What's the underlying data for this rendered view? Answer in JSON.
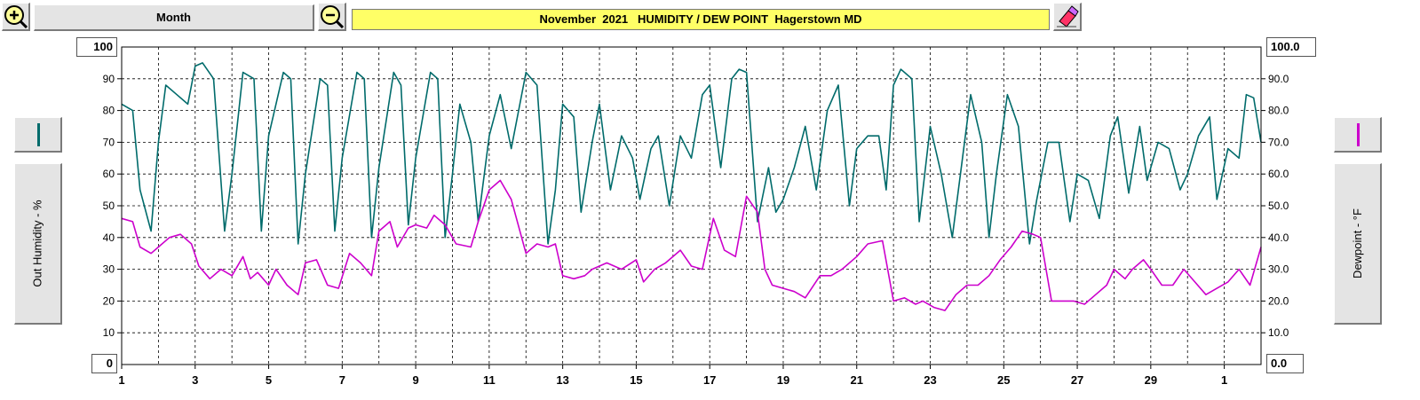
{
  "toolbar": {
    "period_label": "Month",
    "title": "November  2021   HUMIDITY / DEW POINT  Hagerstown MD",
    "zoom_in_icon": "magnifier-plus-icon",
    "zoom_out_icon": "magnifier-minus-icon",
    "eraser_icon": "eraser-icon"
  },
  "left_axis": {
    "label": "Out Humidity - %",
    "max_box": "100",
    "min_box": "0",
    "ticks": [
      "100",
      "90",
      "80",
      "70",
      "60",
      "50",
      "40",
      "30",
      "20",
      "10",
      "0"
    ],
    "series_color": "#006b6b"
  },
  "right_axis": {
    "label": "Dewpoint - °F",
    "max_box": "100.0",
    "min_box": "0.0",
    "ticks": [
      "100.0",
      "90.0",
      "80.0",
      "70.0",
      "60.0",
      "50.0",
      "40.0",
      "30.0",
      "20.0",
      "10.0",
      "0.0"
    ],
    "series_color": "#cc00cc"
  },
  "chart_data": {
    "type": "line",
    "title": "November  2021   HUMIDITY / DEW POINT  Hagerstown MD",
    "x_ticks": [
      "1",
      "3",
      "5",
      "7",
      "9",
      "11",
      "13",
      "15",
      "17",
      "19",
      "21",
      "23",
      "25",
      "27",
      "29",
      "1"
    ],
    "xlim": [
      "Nov 1",
      "Dec 2"
    ],
    "ylim_left": [
      0,
      100
    ],
    "ylim_right": [
      0,
      100
    ],
    "grid": true,
    "series": [
      {
        "name": "Out Humidity - %",
        "axis": "left",
        "color": "#006b6b",
        "x": [
          1.0,
          1.3,
          1.5,
          1.8,
          2.0,
          2.2,
          2.5,
          2.8,
          3.0,
          3.2,
          3.5,
          3.8,
          4.0,
          4.3,
          4.6,
          4.8,
          5.0,
          5.4,
          5.6,
          5.8,
          6.0,
          6.4,
          6.6,
          6.8,
          7.0,
          7.4,
          7.6,
          7.8,
          8.0,
          8.4,
          8.6,
          8.8,
          9.0,
          9.4,
          9.6,
          9.8,
          10.0,
          10.2,
          10.5,
          10.7,
          11.0,
          11.3,
          11.6,
          11.8,
          12.0,
          12.3,
          12.6,
          12.8,
          13.0,
          13.3,
          13.5,
          13.8,
          14.0,
          14.3,
          14.6,
          14.9,
          15.1,
          15.4,
          15.6,
          15.9,
          16.2,
          16.5,
          16.8,
          17.0,
          17.3,
          17.6,
          17.8,
          18.0,
          18.3,
          18.6,
          18.8,
          19.0,
          19.3,
          19.6,
          19.9,
          20.2,
          20.5,
          20.8,
          21.0,
          21.3,
          21.6,
          21.8,
          22.0,
          22.2,
          22.5,
          22.7,
          23.0,
          23.3,
          23.6,
          23.8,
          24.1,
          24.4,
          24.6,
          24.8,
          25.1,
          25.4,
          25.7,
          25.9,
          26.2,
          26.5,
          26.8,
          27.0,
          27.3,
          27.6,
          27.9,
          28.1,
          28.4,
          28.7,
          28.9,
          29.2,
          29.5,
          29.8,
          30.0,
          30.3,
          30.6,
          30.8,
          31.1,
          31.4,
          31.6,
          31.8,
          32.0
        ],
        "values": [
          82,
          80,
          55,
          42,
          70,
          88,
          85,
          82,
          94,
          95,
          90,
          42,
          60,
          92,
          90,
          42,
          72,
          92,
          90,
          38,
          60,
          90,
          88,
          42,
          65,
          92,
          90,
          40,
          62,
          92,
          88,
          44,
          65,
          92,
          90,
          40,
          60,
          82,
          70,
          45,
          72,
          85,
          68,
          80,
          92,
          88,
          38,
          55,
          82,
          78,
          48,
          70,
          82,
          55,
          72,
          65,
          52,
          68,
          72,
          50,
          72,
          65,
          85,
          88,
          62,
          90,
          93,
          92,
          45,
          62,
          48,
          52,
          62,
          75,
          55,
          80,
          88,
          50,
          68,
          72,
          72,
          55,
          88,
          93,
          90,
          45,
          75,
          60,
          40,
          58,
          85,
          70,
          40,
          60,
          85,
          75,
          38,
          52,
          70,
          70,
          45,
          60,
          58,
          46,
          72,
          78,
          54,
          75,
          58,
          70,
          68,
          55,
          60,
          72,
          78,
          52,
          68,
          65,
          85,
          84,
          70
        ],
        "unit": "%"
      },
      {
        "name": "Dewpoint - °F",
        "axis": "right",
        "color": "#cc00cc",
        "x": [
          1.0,
          1.3,
          1.5,
          1.8,
          2.0,
          2.3,
          2.6,
          2.9,
          3.1,
          3.4,
          3.7,
          4.0,
          4.3,
          4.5,
          4.7,
          5.0,
          5.2,
          5.5,
          5.8,
          6.0,
          6.3,
          6.6,
          6.9,
          7.2,
          7.5,
          7.8,
          8.0,
          8.3,
          8.5,
          8.8,
          9.0,
          9.3,
          9.5,
          9.8,
          10.1,
          10.5,
          10.7,
          11.0,
          11.3,
          11.6,
          12.0,
          12.3,
          12.6,
          12.8,
          13.0,
          13.3,
          13.6,
          13.8,
          14.2,
          14.6,
          15.0,
          15.2,
          15.5,
          15.8,
          16.2,
          16.5,
          16.8,
          17.1,
          17.4,
          17.7,
          18.0,
          18.3,
          18.5,
          18.7,
          19.0,
          19.3,
          19.6,
          20.0,
          20.3,
          20.6,
          21.0,
          21.3,
          21.7,
          22.0,
          22.3,
          22.6,
          22.8,
          23.1,
          23.4,
          23.7,
          24.0,
          24.3,
          24.6,
          24.9,
          25.2,
          25.5,
          25.8,
          26.0,
          26.3,
          26.6,
          26.9,
          27.2,
          27.5,
          27.8,
          28.0,
          28.3,
          28.5,
          28.8,
          29.0,
          29.3,
          29.6,
          29.9,
          30.2,
          30.5,
          30.8,
          31.1,
          31.4,
          31.7,
          32.0
        ],
        "values": [
          46,
          45,
          37,
          35,
          37,
          40,
          41,
          38,
          31,
          27,
          30,
          28,
          34,
          27,
          29,
          25,
          30,
          25,
          22,
          32,
          33,
          25,
          24,
          35,
          32,
          28,
          42,
          45,
          37,
          43,
          44,
          43,
          47,
          44,
          38,
          37,
          45,
          55,
          58,
          52,
          35,
          38,
          37,
          38,
          28,
          27,
          28,
          30,
          32,
          30,
          33,
          26,
          30,
          32,
          36,
          31,
          30,
          46,
          36,
          34,
          53,
          48,
          30,
          25,
          24,
          23,
          21,
          28,
          28,
          30,
          34,
          38,
          39,
          20,
          21,
          19,
          20,
          18,
          17,
          22,
          25,
          25,
          28,
          33,
          37,
          42,
          41,
          40,
          20,
          20,
          20,
          19,
          22,
          25,
          30,
          27,
          30,
          33,
          30,
          25,
          25,
          30,
          26,
          22,
          24,
          26,
          30,
          25,
          37
        ],
        "unit": "°F"
      }
    ]
  }
}
